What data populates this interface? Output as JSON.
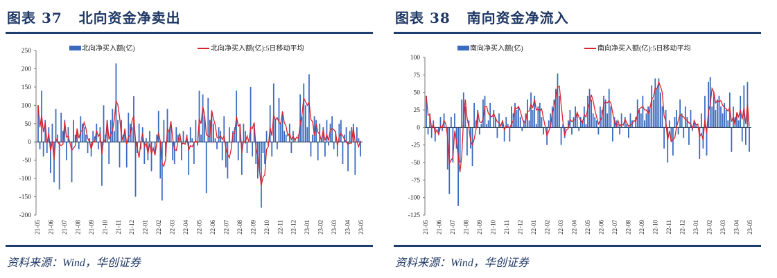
{
  "panels": [
    {
      "title": "图表 37   北向资金净卖出",
      "source": "资料来源：Wind，华创证券"
    },
    {
      "title": "图表 38   南向资金净流入",
      "source": "资料来源：Wind，华创证券"
    }
  ],
  "colors": {
    "bar": "#3a6bbf",
    "line": "#d9232d",
    "rule": "#1f3e6e",
    "title": "#1f3864"
  },
  "chart_data": [
    {
      "type": "bar+line",
      "title": "北向资金净卖出",
      "legend": [
        "北向净买入额(亿)",
        "北向净买入额(亿):5日移动平均"
      ],
      "legend_placement": "top",
      "ylim": [
        -200,
        250
      ],
      "yticks": [
        -200,
        -150,
        -100,
        -50,
        0,
        50,
        100,
        150,
        200,
        250
      ],
      "xticks": [
        "21-05",
        "21-06",
        "21-07",
        "21-08",
        "21-09",
        "21-10",
        "21-11",
        "21-12",
        "22-01",
        "22-02",
        "22-03",
        "22-04",
        "22-05",
        "22-06",
        "22-07",
        "22-08",
        "22-09",
        "22-10",
        "22-11",
        "22-12",
        "23-01",
        "23-02",
        "23-03",
        "23-04",
        "23-05"
      ],
      "grid": false,
      "series": [
        {
          "name": "北向净买入额(亿)",
          "type": "bar",
          "values": [
            100,
            -20,
            140,
            -40,
            60,
            -30,
            40,
            -85,
            50,
            -110,
            90,
            20,
            -130,
            80,
            30,
            60,
            -50,
            40,
            0,
            -110,
            60,
            20,
            30,
            -20,
            70,
            50,
            40,
            20,
            -30,
            10,
            -40,
            30,
            15,
            50,
            -20,
            40,
            -120,
            100,
            20,
            60,
            -60,
            60,
            90,
            30,
            215,
            60,
            -70,
            60,
            20,
            30,
            -70,
            80,
            50,
            40,
            125,
            -150,
            -30,
            50,
            -20,
            40,
            -60,
            10,
            -50,
            30,
            -80,
            0,
            -30,
            20,
            85,
            -100,
            -160,
            60,
            -40,
            90,
            30,
            50,
            -50,
            -60,
            40,
            20,
            10,
            -50,
            30,
            0,
            20,
            -90,
            40,
            10,
            -60,
            60,
            -10,
            140,
            20,
            130,
            70,
            -140,
            120,
            60,
            80,
            50,
            10,
            -20,
            40,
            30,
            -50,
            70,
            -70,
            -100,
            40,
            0,
            30,
            40,
            140,
            -50,
            50,
            -90,
            50,
            30,
            -30,
            0,
            150,
            -40,
            50,
            -60,
            -100,
            -80,
            -180,
            -30,
            -60,
            30,
            -10,
            100,
            -40,
            160,
            60,
            -20,
            120,
            50,
            80,
            30,
            20,
            0,
            50,
            -30,
            30,
            10,
            0,
            20,
            130,
            70,
            160,
            100,
            40,
            185,
            -40,
            20,
            70,
            60,
            -50,
            50,
            10,
            40,
            -40,
            60,
            -10,
            50,
            70,
            -20,
            30,
            -40,
            50,
            60,
            -60,
            20,
            40,
            -80,
            30,
            40,
            50,
            -90,
            40,
            10,
            -40
          ]
        },
        {
          "name": "北向净买入额(亿):5日移动平均",
          "type": "line",
          "window": 5
        }
      ]
    },
    {
      "type": "bar+line",
      "title": "南向资金净流入",
      "legend": [
        "南向净买入额(亿)",
        "南向净买入额(亿):5日移动平均"
      ],
      "legend_placement": "top",
      "ylim": [
        -125,
        100
      ],
      "yticks": [
        -125,
        -100,
        -75,
        -50,
        -25,
        0,
        25,
        50,
        75,
        100
      ],
      "xticks": [
        "21-05",
        "21-06",
        "21-07",
        "21-08",
        "21-09",
        "21-10",
        "21-11",
        "21-12",
        "22-01",
        "22-02",
        "22-03",
        "22-04",
        "22-05",
        "22-06",
        "22-07",
        "22-08",
        "22-09",
        "22-10",
        "22-11",
        "22-12",
        "23-01",
        "23-02",
        "23-03",
        "23-04",
        "23-05"
      ],
      "grid": false,
      "series": [
        {
          "name": "南向净买入额(亿)",
          "type": "bar",
          "values": [
            45,
            -10,
            20,
            -15,
            10,
            -20,
            0,
            -10,
            15,
            -5,
            20,
            0,
            -60,
            -95,
            15,
            -50,
            20,
            -30,
            -112,
            -50,
            40,
            50,
            30,
            -40,
            10,
            -30,
            -55,
            35,
            10,
            25,
            -10,
            5,
            40,
            45,
            5,
            10,
            35,
            0,
            25,
            15,
            -15,
            20,
            0,
            10,
            -20,
            15,
            5,
            -20,
            30,
            20,
            35,
            25,
            30,
            15,
            -5,
            10,
            20,
            40,
            10,
            50,
            25,
            45,
            5,
            30,
            35,
            15,
            -10,
            0,
            -25,
            10,
            20,
            30,
            40,
            55,
            77,
            45,
            -25,
            5,
            -15,
            0,
            10,
            25,
            -10,
            15,
            30,
            20,
            -5,
            15,
            10,
            30,
            5,
            45,
            55,
            40,
            20,
            15,
            10,
            -10,
            30,
            25,
            45,
            40,
            20,
            55,
            30,
            -20,
            15,
            10,
            5,
            -10,
            20,
            0,
            15,
            5,
            -15,
            20,
            10,
            0,
            15,
            40,
            25,
            20,
            45,
            10,
            20,
            30,
            30,
            60,
            40,
            70,
            55,
            70,
            50,
            30,
            -30,
            25,
            -50,
            10,
            -20,
            -40,
            15,
            25,
            -10,
            40,
            20,
            -15,
            30,
            15,
            -25,
            25,
            -5,
            10,
            5,
            0,
            -45,
            20,
            -30,
            45,
            -40,
            65,
            72,
            30,
            50,
            25,
            40,
            45,
            30,
            20,
            35,
            25,
            10,
            50,
            -35,
            30,
            15,
            20,
            10,
            45,
            -20,
            60,
            -25,
            65,
            -35
          ]
        },
        {
          "name": "南向净买入额(亿):5日移动平均",
          "type": "line",
          "window": 5
        }
      ]
    }
  ]
}
